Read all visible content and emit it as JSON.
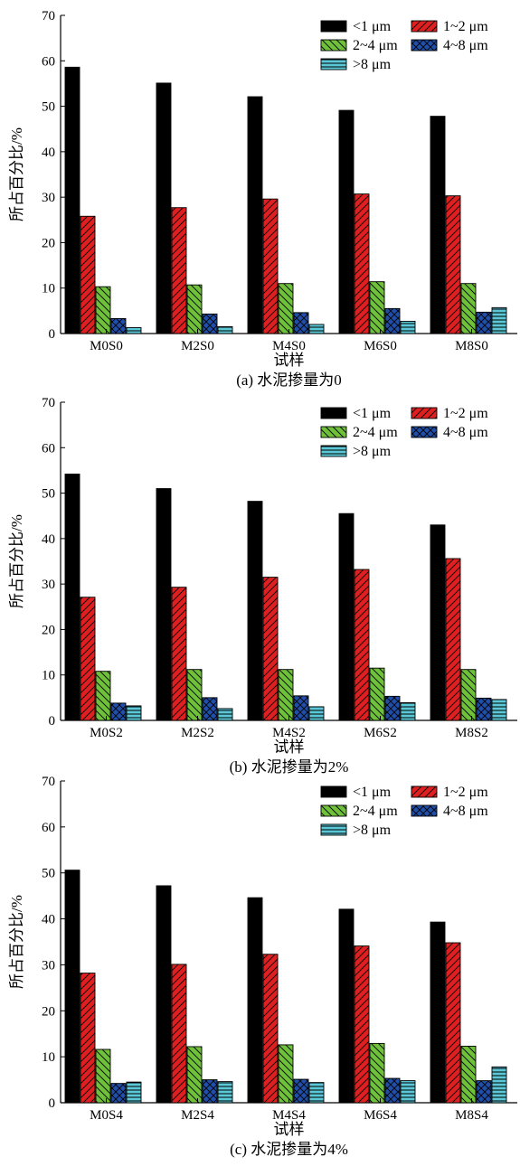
{
  "chart_data": [
    {
      "type": "bar",
      "caption": "(a) 水泥掺量为0",
      "xlabel": "试样",
      "ylabel": "所占百分比/%",
      "ylim": [
        0,
        70
      ],
      "yticks": [
        0,
        10,
        20,
        30,
        40,
        50,
        60,
        70
      ],
      "categories": [
        "M0S0",
        "M2S0",
        "M4S0",
        "M6S0",
        "M8S0"
      ],
      "legend_position": "top-right",
      "series": [
        {
          "name": "<1 μm",
          "values": [
            58.6,
            55.1,
            52.1,
            49.1,
            47.8
          ]
        },
        {
          "name": "1~2 μm",
          "values": [
            25.8,
            27.7,
            29.6,
            30.7,
            30.3
          ]
        },
        {
          "name": "2~4 μm",
          "values": [
            10.3,
            10.7,
            11.0,
            11.4,
            11.0
          ]
        },
        {
          "name": "4~8 μm",
          "values": [
            3.3,
            4.3,
            4.6,
            5.5,
            4.7
          ]
        },
        {
          "name": ">8 μm",
          "values": [
            1.3,
            1.5,
            2.0,
            2.7,
            5.7
          ]
        }
      ]
    },
    {
      "type": "bar",
      "caption": "(b) 水泥掺量为2%",
      "xlabel": "试样",
      "ylabel": "所占百分比/%",
      "ylim": [
        0,
        70
      ],
      "yticks": [
        0,
        10,
        20,
        30,
        40,
        50,
        60,
        70
      ],
      "categories": [
        "M0S2",
        "M2S2",
        "M4S2",
        "M6S2",
        "M8S2"
      ],
      "legend_position": "top-right",
      "series": [
        {
          "name": "<1 μm",
          "values": [
            54.2,
            51.0,
            48.2,
            45.5,
            43.0
          ]
        },
        {
          "name": "1~2 μm",
          "values": [
            27.1,
            29.3,
            31.5,
            33.2,
            35.6
          ]
        },
        {
          "name": "2~4 μm",
          "values": [
            10.8,
            11.2,
            11.2,
            11.5,
            11.2
          ]
        },
        {
          "name": "4~8 μm",
          "values": [
            3.8,
            5.0,
            5.4,
            5.3,
            4.9
          ]
        },
        {
          "name": ">8 μm",
          "values": [
            3.2,
            2.6,
            3.0,
            3.9,
            4.6
          ]
        }
      ]
    },
    {
      "type": "bar",
      "caption": "(c) 水泥掺量为4%",
      "xlabel": "试样",
      "ylabel": "所占百分比/%",
      "ylim": [
        0,
        70
      ],
      "yticks": [
        0,
        10,
        20,
        30,
        40,
        50,
        60,
        70
      ],
      "categories": [
        "M0S4",
        "M2S4",
        "M4S4",
        "M6S4",
        "M8S4"
      ],
      "legend_position": "top-right",
      "series": [
        {
          "name": "<1 μm",
          "values": [
            50.6,
            47.2,
            44.6,
            42.1,
            39.3
          ]
        },
        {
          "name": "1~2 μm",
          "values": [
            28.2,
            30.1,
            32.3,
            34.1,
            34.8
          ]
        },
        {
          "name": "2~4 μm",
          "values": [
            11.6,
            12.2,
            12.6,
            12.9,
            12.3
          ]
        },
        {
          "name": "4~8 μm",
          "values": [
            4.2,
            5.0,
            5.1,
            5.3,
            4.8
          ]
        },
        {
          "name": ">8 μm",
          "values": [
            4.5,
            4.6,
            4.4,
            4.8,
            7.8
          ]
        }
      ]
    }
  ],
  "series_styles": [
    {
      "fill": "#000000",
      "pattern": "solid"
    },
    {
      "fill": "#e02020",
      "pattern": "diag-back"
    },
    {
      "fill": "#6fc03a",
      "pattern": "diag-fwd"
    },
    {
      "fill": "#1f4fa8",
      "pattern": "cross"
    },
    {
      "fill": "#5bc8d8",
      "pattern": "horizontal"
    }
  ]
}
